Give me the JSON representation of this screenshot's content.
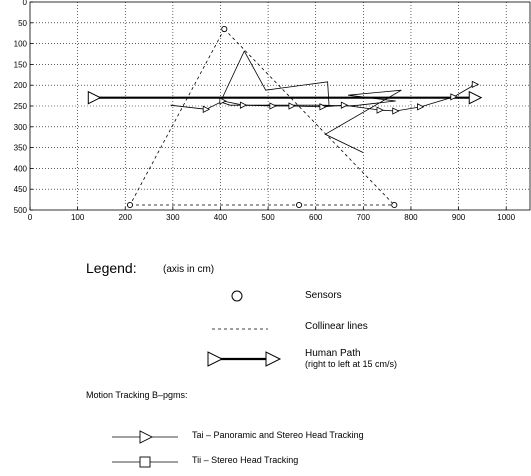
{
  "chart_data": {
    "type": "line",
    "x_axis": {
      "range": [
        0,
        1050
      ],
      "ticks": [
        0,
        100,
        200,
        300,
        400,
        500,
        600,
        700,
        800,
        900,
        1000
      ]
    },
    "y_axis": {
      "range": [
        0,
        500
      ],
      "inverted": true,
      "ticks": [
        0,
        50,
        100,
        150,
        200,
        250,
        300,
        350,
        400,
        450,
        500
      ]
    },
    "grid": true,
    "sensors": [
      {
        "x": 408,
        "y": 65
      },
      {
        "x": 210,
        "y": 488
      },
      {
        "x": 565,
        "y": 488
      },
      {
        "x": 765,
        "y": 488
      }
    ],
    "collinear_lines": [
      [
        [
          408,
          65
        ],
        [
          210,
          488
        ]
      ],
      [
        [
          408,
          65
        ],
        [
          765,
          488
        ]
      ],
      [
        [
          210,
          488
        ],
        [
          765,
          488
        ]
      ]
    ],
    "human_path": {
      "from": [
        935,
        230
      ],
      "to": [
        135,
        230
      ],
      "speed_label": "15 cm/s"
    },
    "tai_track": [
      [
        700,
        362
      ],
      [
        620,
        318
      ],
      [
        780,
        212
      ],
      [
        668,
        224
      ],
      [
        768,
        238
      ],
      [
        690,
        248
      ],
      [
        665,
        250
      ],
      [
        615,
        248
      ],
      [
        525,
        248
      ],
      [
        495,
        248
      ],
      [
        450,
        248
      ],
      [
        420,
        248
      ],
      [
        400,
        240
      ],
      [
        450,
        118
      ],
      [
        495,
        212
      ],
      [
        560,
        202
      ],
      [
        625,
        192
      ],
      [
        628,
        250
      ],
      [
        615,
        250
      ]
    ],
    "tii_track": [
      [
        295,
        248
      ],
      [
        370,
        258
      ],
      [
        405,
        238
      ],
      [
        448,
        248
      ],
      [
        510,
        250
      ],
      [
        550,
        250
      ],
      [
        615,
        252
      ],
      [
        660,
        248
      ],
      [
        735,
        260
      ],
      [
        768,
        262
      ],
      [
        820,
        252
      ],
      [
        890,
        228
      ],
      [
        935,
        198
      ]
    ],
    "legend": {
      "title": "Legend:",
      "units_note": "(axis in cm)",
      "sensors_label": "Sensors",
      "collinear_label": "Collinear lines",
      "human_path_label": "Human Path",
      "human_path_note": "(right to left at 15 cm/s)",
      "programs_title": "Motion Tracking B–pgms:",
      "tai_label": "Tai  – Panoramic and Stereo Head Tracking",
      "tii_label": "Tii  – Stereo Head Tracking"
    }
  }
}
